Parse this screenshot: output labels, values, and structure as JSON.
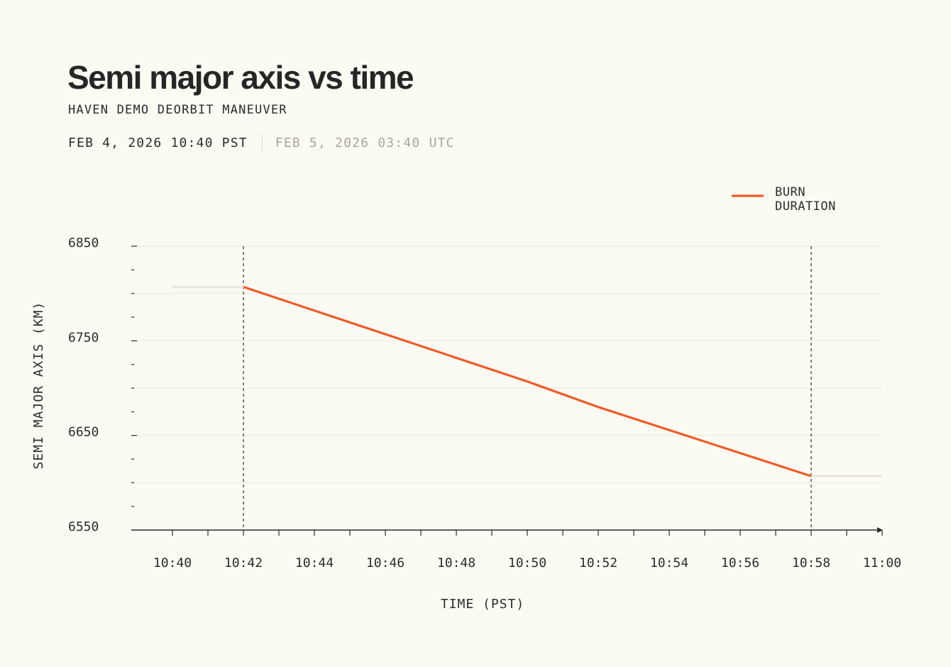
{
  "header": {
    "title": "Semi major axis vs time",
    "subtitle": "HAVEN DEMO DEORBIT MANEUVER",
    "date_local": "FEB 4, 2026 10:40 PST",
    "date_utc": "FEB 5, 2026 03:40 UTC"
  },
  "chart_data": {
    "type": "line",
    "title": "Semi major axis vs time",
    "xlabel": "TIME (PST)",
    "ylabel": "SEMI MAJOR AXIS (KM)",
    "xlim": [
      "10:39",
      "11:00"
    ],
    "ylim": [
      6550,
      6850
    ],
    "x_ticks": [
      "10:40",
      "10:42",
      "10:44",
      "10:46",
      "10:48",
      "10:50",
      "10:52",
      "10:54",
      "10:56",
      "10:58",
      "11:00"
    ],
    "y_ticks": [
      6550,
      6650,
      6750,
      6850
    ],
    "grid": true,
    "legend_position": "top-right",
    "colors": {
      "burn": "#f25a26",
      "baseline": "#e8e6df",
      "grid": "#e9e7de",
      "axis": "#2b2b2b"
    },
    "series": [
      {
        "name": "BURN DURATION",
        "role": "burn",
        "x": [
          "10:42",
          "10:50",
          "10:52",
          "10:58"
        ],
        "y": [
          6807,
          6707,
          6680,
          6607
        ]
      },
      {
        "role": "baseline",
        "x": [
          "10:40",
          "10:42"
        ],
        "y": [
          6807,
          6807
        ]
      },
      {
        "role": "baseline",
        "x": [
          "10:58",
          "11:00"
        ],
        "y": [
          6607,
          6607
        ]
      }
    ],
    "annotations": [
      {
        "type": "vline",
        "x": "10:42"
      },
      {
        "type": "vline",
        "x": "10:58"
      }
    ]
  }
}
